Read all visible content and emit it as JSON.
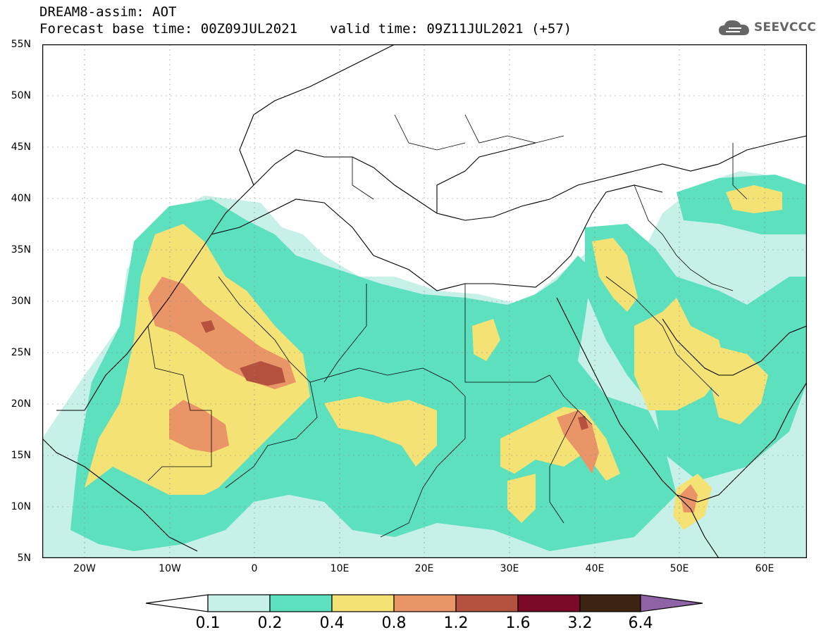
{
  "header": {
    "line1": "DREAM8-assim: AOT",
    "base": "Forecast base time: 00Z09JUL2021",
    "valid": "valid time: 09Z11JUL2021 (+57)"
  },
  "logo": {
    "text": "SEEVCCC",
    "icon": "cloud-icon"
  },
  "axes": {
    "lat_labels": [
      "55N",
      "50N",
      "45N",
      "40N",
      "35N",
      "30N",
      "25N",
      "20N",
      "15N",
      "10N",
      "5N"
    ],
    "lon_labels": [
      "20W",
      "10W",
      "0",
      "10E",
      "20E",
      "30E",
      "40E",
      "50E",
      "60E"
    ],
    "lon_range": [
      -25,
      65
    ],
    "lat_range": [
      5,
      55
    ]
  },
  "colorbar": {
    "labels": [
      "0.1",
      "0.2",
      "0.4",
      "0.8",
      "1.2",
      "1.6",
      "3.2",
      "6.4"
    ],
    "colors": [
      "#ffffff",
      "#c6f0e8",
      "#5ce0be",
      "#f5e275",
      "#ea9567",
      "#b5513f",
      "#7a0a28",
      "#3d2410",
      "#8e64a6"
    ]
  },
  "map": {
    "ocean": "#ffffff",
    "border_color": "#000000"
  }
}
